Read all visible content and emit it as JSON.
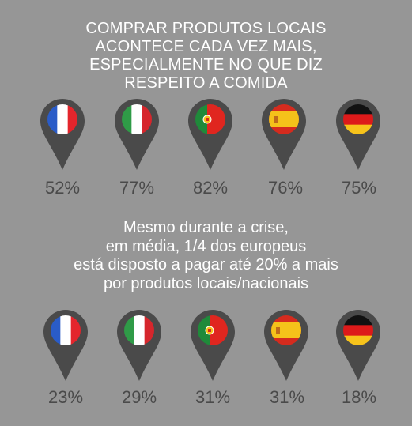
{
  "title_lines": [
    "COMPRAR PRODUTOS LOCAIS",
    "ACONTECE CADA VEZ MAIS,",
    "ESPECIALMENTE NO QUE DIZ",
    "RESPEITO A COMIDA"
  ],
  "subtitle_lines": [
    "Mesmo durante a crise,",
    "em média, 1/4 dos europeus",
    "está disposto a pagar até 20% a mais",
    "por produtos locais/nacionais"
  ],
  "colors": {
    "background": "#969696",
    "pin": "#4a4a4a",
    "text_light": "#ffffff",
    "text_dark": "#4a4a4a"
  },
  "rows": [
    {
      "items": [
        {
          "flag": "france-flag",
          "value": "52%"
        },
        {
          "flag": "italy-flag",
          "value": "77%"
        },
        {
          "flag": "portugal-flag",
          "value": "82%"
        },
        {
          "flag": "spain-flag",
          "value": "76%"
        },
        {
          "flag": "germany-flag",
          "value": "75%"
        }
      ]
    },
    {
      "items": [
        {
          "flag": "france-flag",
          "value": "23%"
        },
        {
          "flag": "italy-flag",
          "value": "29%"
        },
        {
          "flag": "portugal-flag",
          "value": "31%"
        },
        {
          "flag": "spain-flag",
          "value": "31%"
        },
        {
          "flag": "germany-flag",
          "value": "18%"
        }
      ]
    }
  ]
}
